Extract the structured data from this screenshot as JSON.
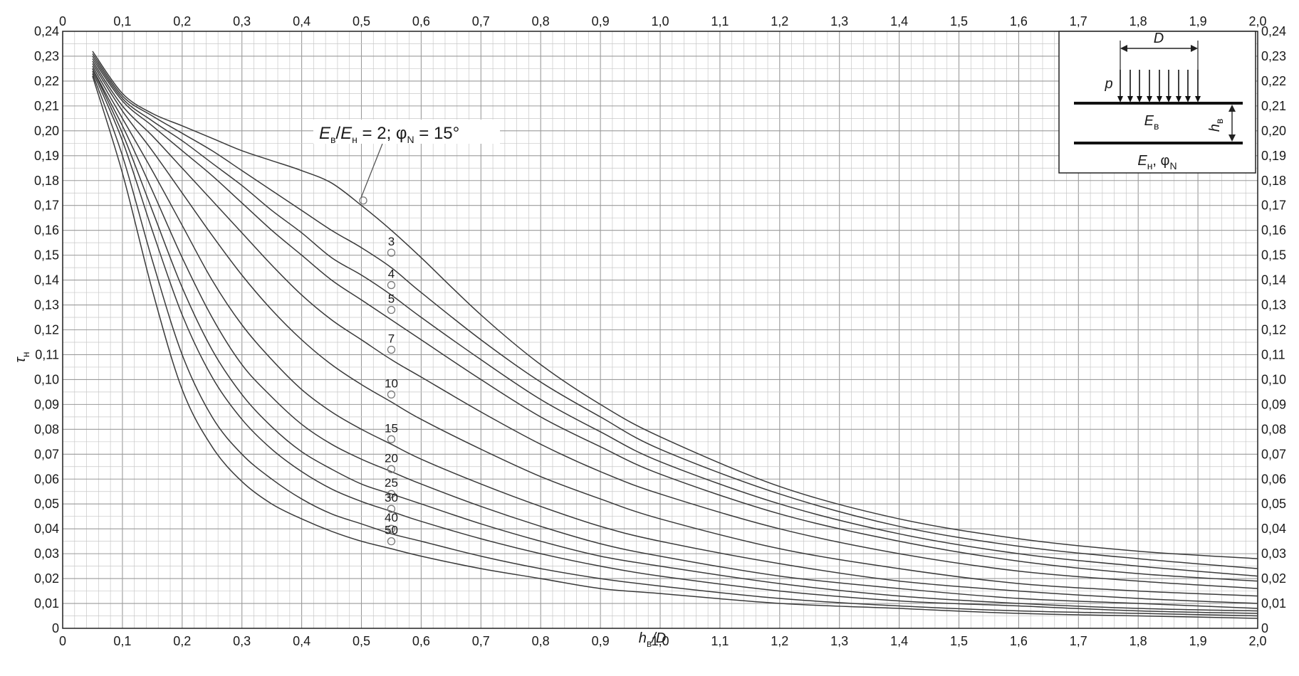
{
  "chart_data": {
    "type": "line",
    "xlabel": "h",
    "xlabel_sub": "в",
    "xlabel_tail": "/D",
    "ylabel": "τ",
    "ylabel_sub": "н",
    "xlim": [
      0,
      2.0
    ],
    "ylim": [
      0,
      0.24
    ],
    "x_ticks": [
      "0",
      "0,1",
      "0,2",
      "0,3",
      "0,4",
      "0,5",
      "0,6",
      "0,7",
      "0,8",
      "0,9",
      "1,0",
      "1,1",
      "1,2",
      "1,3",
      "1,4",
      "1,5",
      "1,6",
      "1,7",
      "1,8",
      "1,9",
      "2,0"
    ],
    "y_ticks": [
      "0",
      "0,01",
      "0,02",
      "0,03",
      "0,04",
      "0,05",
      "0,06",
      "0,07",
      "0,08",
      "0,09",
      "0,10",
      "0,11",
      "0,12",
      "0,13",
      "0,14",
      "0,15",
      "0,16",
      "0,17",
      "0,18",
      "0,19",
      "0,20",
      "0,21",
      "0,22",
      "0,23",
      "0,24"
    ],
    "grid": true,
    "callout": {
      "e1": "E",
      "e1_sub": "в",
      "slash": "/",
      "e2": "E",
      "e2_sub": "н",
      "mid": " = 2; φ",
      "phi_sub": "N",
      "tail": " = 15°"
    },
    "series": [
      {
        "name": "2",
        "label_y": 0.172,
        "x": [
          0.05,
          0.1,
          0.15,
          0.2,
          0.25,
          0.3,
          0.35,
          0.4,
          0.45,
          0.5,
          0.55,
          0.6,
          0.7,
          0.8,
          0.9,
          1.0,
          1.2,
          1.4,
          1.6,
          1.8,
          2.0
        ],
        "values": [
          0.232,
          0.215,
          0.207,
          0.202,
          0.197,
          0.192,
          0.188,
          0.184,
          0.179,
          0.17,
          0.16,
          0.149,
          0.126,
          0.106,
          0.09,
          0.077,
          0.057,
          0.044,
          0.036,
          0.031,
          0.028
        ]
      },
      {
        "name": "3",
        "label_y": 0.151,
        "x": [
          0.05,
          0.1,
          0.15,
          0.2,
          0.25,
          0.3,
          0.35,
          0.4,
          0.45,
          0.5,
          0.55,
          0.6,
          0.7,
          0.8,
          0.9,
          1.0,
          1.2,
          1.4,
          1.6,
          1.8,
          2.0
        ],
        "values": [
          0.231,
          0.214,
          0.206,
          0.199,
          0.192,
          0.184,
          0.176,
          0.168,
          0.16,
          0.153,
          0.145,
          0.135,
          0.116,
          0.099,
          0.085,
          0.072,
          0.054,
          0.041,
          0.033,
          0.028,
          0.024
        ]
      },
      {
        "name": "4",
        "label_y": 0.138,
        "x": [
          0.05,
          0.1,
          0.15,
          0.2,
          0.25,
          0.3,
          0.35,
          0.4,
          0.45,
          0.5,
          0.55,
          0.6,
          0.7,
          0.8,
          0.9,
          1.0,
          1.2,
          1.4,
          1.6,
          1.8,
          2.0
        ],
        "values": [
          0.23,
          0.213,
          0.204,
          0.196,
          0.187,
          0.178,
          0.168,
          0.159,
          0.149,
          0.142,
          0.134,
          0.125,
          0.108,
          0.092,
          0.079,
          0.067,
          0.05,
          0.038,
          0.03,
          0.025,
          0.021
        ]
      },
      {
        "name": "5",
        "label_y": 0.128,
        "x": [
          0.05,
          0.1,
          0.15,
          0.2,
          0.25,
          0.3,
          0.35,
          0.4,
          0.45,
          0.5,
          0.55,
          0.6,
          0.7,
          0.8,
          0.9,
          1.0,
          1.2,
          1.4,
          1.6,
          1.8,
          2.0
        ],
        "values": [
          0.229,
          0.212,
          0.202,
          0.192,
          0.182,
          0.171,
          0.16,
          0.15,
          0.14,
          0.132,
          0.124,
          0.116,
          0.1,
          0.085,
          0.073,
          0.062,
          0.046,
          0.035,
          0.027,
          0.022,
          0.019
        ]
      },
      {
        "name": "7",
        "label_y": 0.112,
        "x": [
          0.05,
          0.1,
          0.15,
          0.2,
          0.25,
          0.3,
          0.35,
          0.4,
          0.45,
          0.5,
          0.55,
          0.6,
          0.7,
          0.8,
          0.9,
          1.0,
          1.2,
          1.4,
          1.6,
          1.8,
          2.0
        ],
        "values": [
          0.228,
          0.21,
          0.198,
          0.185,
          0.172,
          0.159,
          0.146,
          0.134,
          0.124,
          0.116,
          0.108,
          0.101,
          0.087,
          0.074,
          0.063,
          0.054,
          0.04,
          0.03,
          0.023,
          0.019,
          0.016
        ]
      },
      {
        "name": "10",
        "label_y": 0.094,
        "x": [
          0.05,
          0.1,
          0.15,
          0.2,
          0.25,
          0.3,
          0.35,
          0.4,
          0.45,
          0.5,
          0.55,
          0.6,
          0.7,
          0.8,
          0.9,
          1.0,
          1.2,
          1.4,
          1.6,
          1.8,
          2.0
        ],
        "values": [
          0.227,
          0.208,
          0.192,
          0.175,
          0.158,
          0.142,
          0.128,
          0.116,
          0.106,
          0.098,
          0.091,
          0.084,
          0.072,
          0.061,
          0.052,
          0.044,
          0.032,
          0.024,
          0.018,
          0.015,
          0.013
        ]
      },
      {
        "name": "15",
        "label_y": 0.076,
        "x": [
          0.05,
          0.1,
          0.15,
          0.2,
          0.25,
          0.3,
          0.35,
          0.4,
          0.45,
          0.5,
          0.55,
          0.6,
          0.7,
          0.8,
          0.9,
          1.0,
          1.2,
          1.4,
          1.6,
          1.8,
          2.0
        ],
        "values": [
          0.226,
          0.205,
          0.184,
          0.162,
          0.14,
          0.122,
          0.108,
          0.096,
          0.087,
          0.08,
          0.074,
          0.068,
          0.058,
          0.049,
          0.041,
          0.035,
          0.026,
          0.019,
          0.015,
          0.012,
          0.01
        ]
      },
      {
        "name": "20",
        "label_y": 0.064,
        "x": [
          0.05,
          0.1,
          0.15,
          0.2,
          0.25,
          0.3,
          0.35,
          0.4,
          0.45,
          0.5,
          0.55,
          0.6,
          0.7,
          0.8,
          0.9,
          1.0,
          1.2,
          1.4,
          1.6,
          1.8,
          2.0
        ],
        "values": [
          0.225,
          0.202,
          0.176,
          0.149,
          0.125,
          0.106,
          0.093,
          0.082,
          0.074,
          0.068,
          0.063,
          0.058,
          0.049,
          0.041,
          0.034,
          0.029,
          0.021,
          0.016,
          0.012,
          0.01,
          0.008
        ]
      },
      {
        "name": "25",
        "label_y": 0.054,
        "x": [
          0.05,
          0.1,
          0.15,
          0.2,
          0.25,
          0.3,
          0.35,
          0.4,
          0.45,
          0.5,
          0.55,
          0.6,
          0.7,
          0.8,
          0.9,
          1.0,
          1.2,
          1.4,
          1.6,
          1.8,
          2.0
        ],
        "values": [
          0.225,
          0.199,
          0.168,
          0.137,
          0.112,
          0.094,
          0.081,
          0.071,
          0.064,
          0.058,
          0.054,
          0.05,
          0.042,
          0.035,
          0.029,
          0.025,
          0.018,
          0.013,
          0.01,
          0.008,
          0.007
        ]
      },
      {
        "name": "30",
        "label_y": 0.048,
        "x": [
          0.05,
          0.1,
          0.15,
          0.2,
          0.25,
          0.3,
          0.35,
          0.4,
          0.45,
          0.5,
          0.55,
          0.6,
          0.7,
          0.8,
          0.9,
          1.0,
          1.2,
          1.4,
          1.6,
          1.8,
          2.0
        ],
        "values": [
          0.224,
          0.196,
          0.16,
          0.126,
          0.101,
          0.084,
          0.072,
          0.063,
          0.056,
          0.051,
          0.047,
          0.043,
          0.036,
          0.03,
          0.025,
          0.021,
          0.015,
          0.011,
          0.009,
          0.007,
          0.006
        ]
      },
      {
        "name": "40",
        "label_y": 0.04,
        "x": [
          0.05,
          0.1,
          0.15,
          0.2,
          0.25,
          0.3,
          0.35,
          0.4,
          0.45,
          0.5,
          0.55,
          0.6,
          0.7,
          0.8,
          0.9,
          1.0,
          1.2,
          1.4,
          1.6,
          1.8,
          2.0
        ],
        "values": [
          0.223,
          0.19,
          0.148,
          0.11,
          0.085,
          0.07,
          0.06,
          0.052,
          0.046,
          0.042,
          0.038,
          0.035,
          0.029,
          0.024,
          0.02,
          0.017,
          0.012,
          0.009,
          0.007,
          0.006,
          0.005
        ]
      },
      {
        "name": "50",
        "label_y": 0.035,
        "x": [
          0.05,
          0.1,
          0.15,
          0.2,
          0.25,
          0.3,
          0.35,
          0.4,
          0.45,
          0.5,
          0.55,
          0.6,
          0.7,
          0.8,
          0.9,
          1.0,
          1.2,
          1.4,
          1.6,
          1.8,
          2.0
        ],
        "values": [
          0.222,
          0.183,
          0.136,
          0.096,
          0.073,
          0.059,
          0.05,
          0.044,
          0.039,
          0.035,
          0.032,
          0.029,
          0.024,
          0.02,
          0.016,
          0.014,
          0.01,
          0.008,
          0.006,
          0.005,
          0.004
        ]
      }
    ],
    "curve_labels": [
      "3",
      "4",
      "5",
      "7",
      "10",
      "15",
      "20",
      "25",
      "30",
      "40",
      "50"
    ],
    "curve_label_x": 0.55,
    "callout_marker": {
      "x": 0.503,
      "y": 0.172
    }
  },
  "inset": {
    "d_label": "D",
    "p_label": "p",
    "ev_main": "E",
    "ev_sub": "в",
    "hv_main": "h",
    "hv_sub": "в",
    "en_main": "E",
    "en_sub": "н",
    "en_tail": ", φ",
    "phi_sub": "N"
  }
}
